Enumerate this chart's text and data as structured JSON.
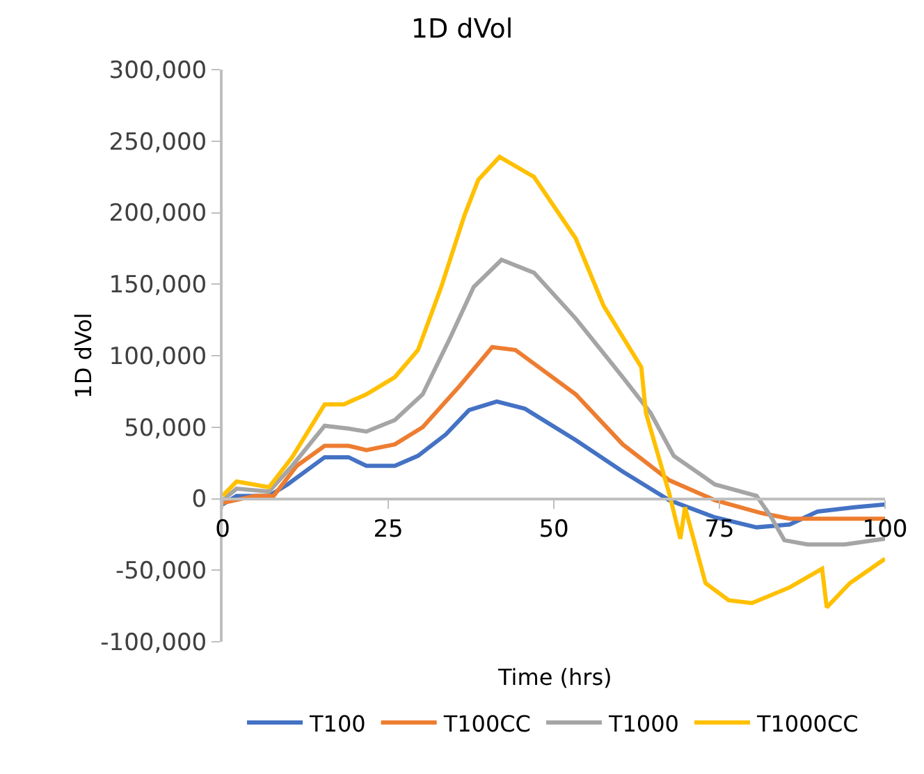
{
  "chart_data": {
    "type": "line",
    "title": "1D dVol",
    "xlabel": "Time (hrs)",
    "ylabel": "1D dVol",
    "xlim": [
      0,
      100
    ],
    "xticks": [
      0,
      25,
      50,
      75,
      100
    ],
    "ylim": [
      -100000,
      300000
    ],
    "yticks": [
      {
        "value": -100000,
        "label": "-100,000"
      },
      {
        "value": -50000,
        "label": "-50,000"
      },
      {
        "value": 0,
        "label": "0"
      },
      {
        "value": 50000,
        "label": "50,000"
      },
      {
        "value": 100000,
        "label": "100,000"
      },
      {
        "value": 150000,
        "label": "150,000"
      },
      {
        "value": 200000,
        "label": "200,000"
      },
      {
        "value": 250000,
        "label": "250,000"
      },
      {
        "value": 300000,
        "label": "300,000"
      }
    ],
    "legend": "bottom",
    "marker": "none",
    "line_style": "solid",
    "series": [
      {
        "name": "T100",
        "color": "#4472c4",
        "x": [
          0,
          2.1,
          7,
          9.8,
          15.4,
          19,
          21.7,
          26,
          29.5,
          33.7,
          37.2,
          41.4,
          45.6,
          53.3,
          60.4,
          67.4,
          74.3,
          80.6,
          85.6,
          89.8,
          95.4,
          100
        ],
        "values": [
          -4000,
          2000,
          2000,
          10000,
          29000,
          29000,
          23000,
          23000,
          30000,
          45000,
          62000,
          68000,
          63000,
          41000,
          19000,
          -1000,
          -13000,
          -20000,
          -18000,
          -9000,
          -6000,
          -4000
        ]
      },
      {
        "name": "T100CC",
        "color": "#ed7d31",
        "x": [
          0,
          4.9,
          7.7,
          11.2,
          15.4,
          19,
          21.7,
          26,
          30.2,
          35.8,
          40.7,
          44.2,
          53.3,
          60.4,
          67.4,
          74.3,
          81.3,
          85.6,
          100
        ],
        "values": [
          -3000,
          2000,
          2000,
          23000,
          37000,
          37000,
          34000,
          38000,
          50000,
          79000,
          106000,
          104000,
          73000,
          38000,
          13000,
          -1000,
          -10000,
          -14000,
          -14000
        ]
      },
      {
        "name": "T1000",
        "color": "#a5a5a5",
        "x": [
          0,
          2.1,
          7,
          10.5,
          15.4,
          19,
          21.7,
          26,
          30.2,
          34.4,
          37.9,
          42.1,
          47,
          53.3,
          60.4,
          64.6,
          68.1,
          74.3,
          80.6,
          82.7,
          84.8,
          88.3,
          93.9,
          100
        ],
        "values": [
          -1000,
          7000,
          5000,
          23000,
          51000,
          49000,
          47000,
          55000,
          73000,
          113000,
          148000,
          167000,
          158000,
          126000,
          85000,
          60000,
          30000,
          10000,
          2000,
          -12000,
          -29000,
          -32000,
          -32000,
          -28000
        ]
      },
      {
        "name": "T1000CC",
        "color": "#ffc000",
        "x": [
          0,
          2.1,
          7,
          10.5,
          15.4,
          18.3,
          21.7,
          26,
          29.5,
          33,
          36.5,
          38.6,
          41.8,
          47,
          53.3,
          57.5,
          63.2,
          63.9,
          67.4,
          69.1,
          69.8,
          72.9,
          76.4,
          79.9,
          85.6,
          90.5,
          91.2,
          94.7,
          100
        ],
        "values": [
          2000,
          12000,
          8000,
          29000,
          66000,
          66000,
          73000,
          85000,
          104000,
          148000,
          198000,
          223000,
          239000,
          225000,
          182000,
          135000,
          92000,
          60000,
          4000,
          -28000,
          -6000,
          -59000,
          -71000,
          -73000,
          -62000,
          -49000,
          -76000,
          -59000,
          -42000
        ]
      }
    ]
  }
}
